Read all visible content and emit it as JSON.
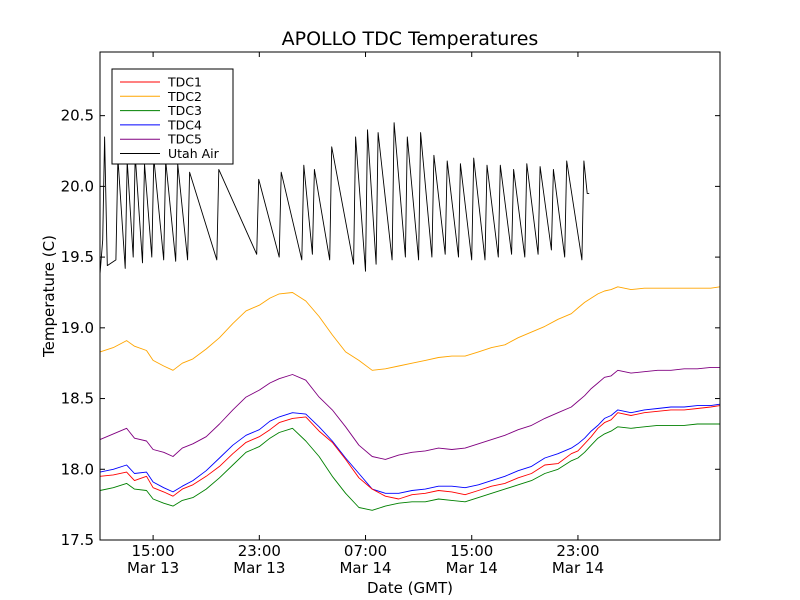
{
  "chart_data": {
    "type": "line",
    "title": "APOLLO TDC Temperatures",
    "xlabel": "Date (GMT)",
    "ylabel": "Temperature (C)",
    "xlim": [
      11.0,
      57.7
    ],
    "ylim": [
      17.5,
      20.95
    ],
    "x_units": "hours since Mar 13 00:00 GMT",
    "y_ticks": [
      {
        "value": 17.5,
        "label": "17.5"
      },
      {
        "value": 18.0,
        "label": "18.0"
      },
      {
        "value": 18.5,
        "label": "18.5"
      },
      {
        "value": 19.0,
        "label": "19.0"
      },
      {
        "value": 19.5,
        "label": "19.5"
      },
      {
        "value": 20.0,
        "label": "20.0"
      },
      {
        "value": 20.5,
        "label": "20.5"
      }
    ],
    "x_ticks": [
      {
        "value": 15,
        "time": "15:00",
        "date": "Mar 13"
      },
      {
        "value": 23,
        "time": "23:00",
        "date": "Mar 13"
      },
      {
        "value": 31,
        "time": "07:00",
        "date": "Mar 14"
      },
      {
        "value": 39,
        "time": "15:00",
        "date": "Mar 14"
      },
      {
        "value": 47,
        "time": "23:00",
        "date": "Mar 14"
      }
    ],
    "legend_position": "top-left",
    "series": [
      {
        "name": "TDC1",
        "label": "TDC1",
        "color": "#ff0000",
        "x": [
          11.0,
          12.0,
          13.0,
          13.6,
          14.5,
          15.0,
          15.8,
          16.5,
          17.2,
          18.0,
          19.0,
          20.0,
          21.0,
          22.0,
          23.0,
          23.8,
          24.5,
          25.5,
          26.5,
          27.5,
          28.5,
          29.5,
          30.5,
          31.5,
          32.5,
          33.5,
          34.5,
          35.5,
          36.5,
          37.5,
          38.5,
          39.5,
          40.5,
          41.5,
          42.5,
          43.5,
          44.5,
          45.5,
          46.5,
          47.0,
          47.5,
          48.0,
          48.5,
          49.0,
          49.5,
          50.0,
          51.0,
          52.0,
          53.0,
          54.0,
          55.0,
          56.0,
          57.0,
          57.7
        ],
        "y": [
          17.95,
          17.96,
          17.98,
          17.92,
          17.95,
          17.87,
          17.84,
          17.81,
          17.86,
          17.89,
          17.95,
          18.02,
          18.11,
          18.19,
          18.23,
          18.28,
          18.33,
          18.36,
          18.37,
          18.27,
          18.19,
          18.07,
          17.94,
          17.86,
          17.81,
          17.79,
          17.82,
          17.83,
          17.85,
          17.84,
          17.82,
          17.85,
          17.88,
          17.9,
          17.94,
          17.97,
          18.03,
          18.04,
          18.11,
          18.13,
          18.18,
          18.23,
          18.29,
          18.33,
          18.35,
          18.4,
          18.38,
          18.4,
          18.41,
          18.42,
          18.42,
          18.43,
          18.44,
          18.45
        ]
      },
      {
        "name": "TDC2",
        "label": "TDC2",
        "color": "#ffa500",
        "x": [
          11.0,
          12.0,
          13.0,
          13.6,
          14.5,
          15.0,
          15.8,
          16.5,
          17.2,
          18.0,
          19.0,
          20.0,
          21.0,
          22.0,
          23.0,
          23.8,
          24.5,
          25.5,
          26.5,
          27.5,
          28.5,
          29.5,
          30.5,
          31.5,
          32.5,
          33.5,
          34.5,
          35.5,
          36.5,
          37.5,
          38.5,
          39.5,
          40.5,
          41.5,
          42.5,
          43.5,
          44.5,
          45.5,
          46.5,
          47.0,
          47.5,
          48.0,
          48.5,
          49.0,
          49.5,
          50.0,
          51.0,
          52.0,
          53.0,
          54.0,
          55.0,
          56.0,
          57.0,
          57.7
        ],
        "y": [
          18.83,
          18.86,
          18.91,
          18.87,
          18.84,
          18.77,
          18.73,
          18.7,
          18.75,
          18.78,
          18.85,
          18.93,
          19.03,
          19.12,
          19.16,
          19.21,
          19.24,
          19.25,
          19.19,
          19.08,
          18.95,
          18.83,
          18.77,
          18.7,
          18.71,
          18.73,
          18.75,
          18.77,
          18.79,
          18.8,
          18.8,
          18.83,
          18.86,
          18.88,
          18.93,
          18.97,
          19.01,
          19.06,
          19.1,
          19.14,
          19.18,
          19.21,
          19.24,
          19.26,
          19.27,
          19.29,
          19.27,
          19.28,
          19.28,
          19.28,
          19.28,
          19.28,
          19.28,
          19.29
        ]
      },
      {
        "name": "TDC3",
        "label": "TDC3",
        "color": "#008000",
        "x": [
          11.0,
          12.0,
          13.0,
          13.6,
          14.5,
          15.0,
          15.8,
          16.5,
          17.2,
          18.0,
          19.0,
          20.0,
          21.0,
          22.0,
          23.0,
          23.8,
          24.5,
          25.5,
          26.5,
          27.5,
          28.5,
          29.5,
          30.5,
          31.5,
          32.5,
          33.5,
          34.5,
          35.5,
          36.5,
          37.5,
          38.5,
          39.5,
          40.5,
          41.5,
          42.5,
          43.5,
          44.5,
          45.5,
          46.5,
          47.0,
          47.5,
          48.0,
          48.5,
          49.0,
          49.5,
          50.0,
          51.0,
          52.0,
          53.0,
          54.0,
          55.0,
          56.0,
          57.0,
          57.7
        ],
        "y": [
          17.85,
          17.87,
          17.9,
          17.86,
          17.85,
          17.79,
          17.76,
          17.74,
          17.78,
          17.8,
          17.86,
          17.94,
          18.03,
          18.12,
          18.16,
          18.22,
          18.26,
          18.29,
          18.2,
          18.09,
          17.95,
          17.83,
          17.73,
          17.71,
          17.74,
          17.76,
          17.77,
          17.77,
          17.79,
          17.78,
          17.77,
          17.8,
          17.83,
          17.86,
          17.89,
          17.92,
          17.97,
          18.0,
          18.06,
          18.08,
          18.12,
          18.17,
          18.22,
          18.25,
          18.27,
          18.3,
          18.29,
          18.3,
          18.31,
          18.31,
          18.31,
          18.32,
          18.32,
          18.32
        ]
      },
      {
        "name": "TDC4",
        "label": "TDC4",
        "color": "#0000ff",
        "x": [
          11.0,
          12.0,
          13.0,
          13.6,
          14.5,
          15.0,
          15.8,
          16.5,
          17.2,
          18.0,
          19.0,
          20.0,
          21.0,
          22.0,
          23.0,
          23.8,
          24.5,
          25.5,
          26.5,
          27.5,
          28.5,
          29.5,
          30.5,
          31.5,
          32.5,
          33.5,
          34.5,
          35.5,
          36.5,
          37.5,
          38.5,
          39.5,
          40.5,
          41.5,
          42.5,
          43.5,
          44.5,
          45.5,
          46.5,
          47.0,
          47.5,
          48.0,
          48.5,
          49.0,
          49.5,
          50.0,
          51.0,
          52.0,
          53.0,
          54.0,
          55.0,
          56.0,
          57.0,
          57.7
        ],
        "y": [
          17.98,
          18.0,
          18.03,
          17.97,
          17.98,
          17.91,
          17.87,
          17.84,
          17.88,
          17.92,
          17.99,
          18.08,
          18.17,
          18.24,
          18.28,
          18.34,
          18.37,
          18.4,
          18.39,
          18.3,
          18.2,
          18.08,
          17.97,
          17.86,
          17.83,
          17.83,
          17.85,
          17.86,
          17.88,
          17.88,
          17.87,
          17.89,
          17.92,
          17.95,
          17.99,
          18.02,
          18.08,
          18.11,
          18.15,
          18.18,
          18.22,
          18.27,
          18.31,
          18.36,
          18.38,
          18.42,
          18.4,
          18.42,
          18.43,
          18.44,
          18.44,
          18.45,
          18.45,
          18.46
        ]
      },
      {
        "name": "TDC5",
        "label": "TDC5",
        "color": "#800080",
        "x": [
          11.0,
          12.0,
          13.0,
          13.6,
          14.5,
          15.0,
          15.8,
          16.5,
          17.2,
          18.0,
          19.0,
          20.0,
          21.0,
          22.0,
          23.0,
          23.8,
          24.5,
          25.5,
          26.5,
          27.5,
          28.5,
          29.5,
          30.5,
          31.5,
          32.5,
          33.5,
          34.5,
          35.5,
          36.5,
          37.5,
          38.5,
          39.5,
          40.5,
          41.5,
          42.5,
          43.5,
          44.5,
          45.5,
          46.5,
          47.0,
          47.5,
          48.0,
          48.5,
          49.0,
          49.5,
          50.0,
          51.0,
          52.0,
          53.0,
          54.0,
          55.0,
          56.0,
          57.0,
          57.7
        ],
        "y": [
          18.21,
          18.25,
          18.29,
          18.22,
          18.2,
          18.14,
          18.12,
          18.09,
          18.15,
          18.18,
          18.23,
          18.32,
          18.42,
          18.51,
          18.56,
          18.61,
          18.64,
          18.67,
          18.63,
          18.51,
          18.42,
          18.3,
          18.17,
          18.09,
          18.07,
          18.1,
          18.12,
          18.13,
          18.15,
          18.14,
          18.15,
          18.18,
          18.21,
          18.24,
          18.28,
          18.31,
          18.36,
          18.4,
          18.44,
          18.48,
          18.52,
          18.57,
          18.61,
          18.65,
          18.66,
          18.7,
          18.68,
          18.69,
          18.7,
          18.7,
          18.71,
          18.71,
          18.72,
          18.72
        ]
      },
      {
        "name": "Utah Air",
        "label": "Utah Air",
        "color": "#000000",
        "x": [
          11.0,
          11.2,
          11.35,
          11.55,
          12.2,
          12.35,
          12.9,
          13.05,
          13.5,
          13.65,
          14.2,
          14.35,
          14.9,
          15.05,
          15.8,
          15.95,
          16.7,
          16.85,
          17.6,
          17.75,
          19.8,
          19.95,
          22.8,
          22.95,
          24.5,
          24.65,
          26.2,
          26.35,
          27.0,
          27.15,
          28.3,
          28.45,
          30.1,
          30.25,
          31.0,
          31.15,
          31.8,
          31.95,
          33.0,
          33.15,
          34.0,
          34.15,
          35.0,
          35.15,
          36.0,
          36.15,
          37.0,
          37.15,
          38.0,
          38.15,
          39.0,
          39.15,
          40.0,
          40.15,
          41.0,
          41.15,
          42.0,
          42.15,
          43.0,
          43.15,
          44.0,
          44.15,
          45.0,
          45.15,
          46.0,
          46.15,
          47.3,
          47.45,
          47.7,
          47.85
        ],
        "y": [
          19.38,
          19.62,
          20.35,
          19.44,
          19.48,
          20.2,
          19.42,
          20.18,
          19.5,
          20.22,
          19.46,
          20.16,
          19.5,
          20.2,
          19.48,
          20.18,
          19.47,
          20.16,
          19.48,
          20.1,
          19.48,
          20.12,
          19.52,
          20.05,
          19.5,
          20.1,
          19.48,
          20.15,
          19.52,
          20.12,
          19.48,
          20.28,
          19.45,
          20.35,
          19.4,
          20.4,
          19.45,
          20.38,
          19.48,
          20.45,
          19.5,
          20.35,
          19.48,
          20.38,
          19.5,
          20.22,
          19.52,
          20.18,
          19.5,
          20.16,
          19.48,
          20.2,
          19.48,
          20.15,
          19.5,
          20.15,
          19.52,
          20.12,
          19.5,
          20.16,
          19.52,
          20.14,
          19.55,
          20.12,
          19.5,
          20.18,
          19.48,
          20.18,
          19.95,
          19.95
        ]
      }
    ]
  }
}
